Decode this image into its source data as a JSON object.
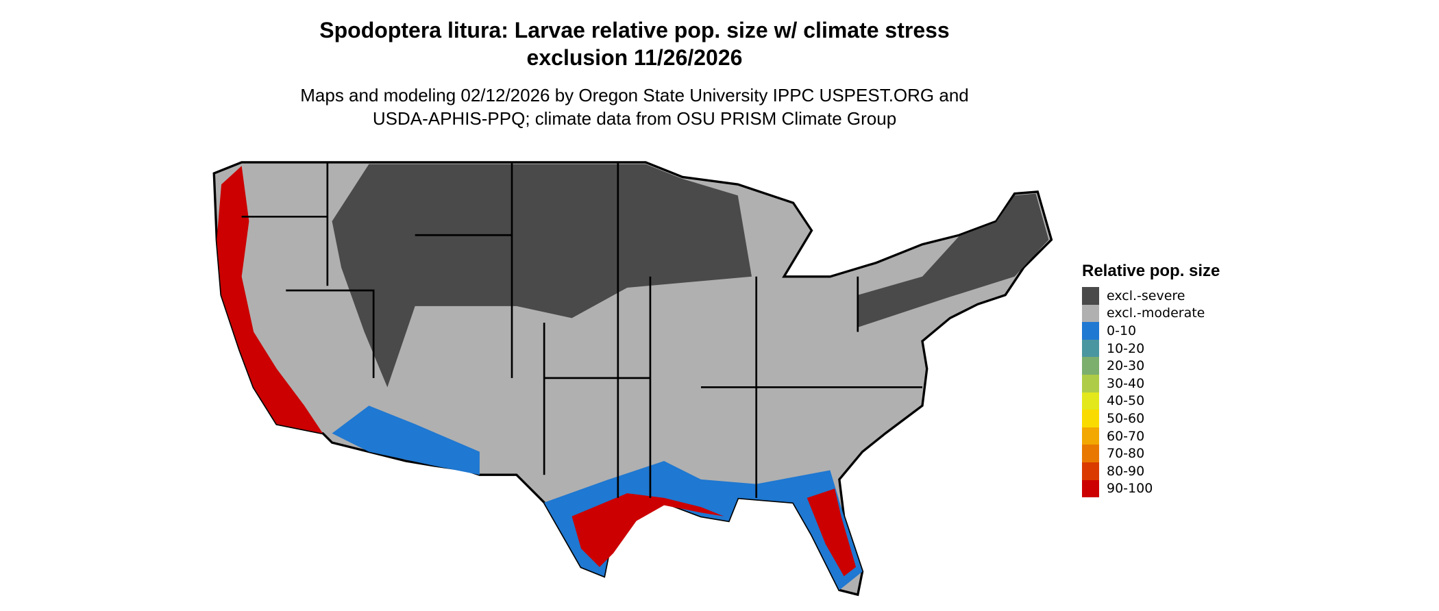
{
  "title": "Spodoptera litura: Larvae relative pop. size w/ climate stress exclusion 11/26/2026",
  "subtitle": "Maps and modeling 02/12/2026 by Oregon State University IPPC USPEST.ORG and USDA-APHIS-PPQ; climate data from OSU PRISM Climate Group",
  "legend": {
    "title": "Relative pop. size",
    "items": [
      {
        "label": "excl.-severe",
        "color": "#4a4a4a"
      },
      {
        "label": "excl.-moderate",
        "color": "#b0b0b0"
      },
      {
        "label": "0-10",
        "color": "#1f78d1"
      },
      {
        "label": "10-20",
        "color": "#4a96a0"
      },
      {
        "label": "20-30",
        "color": "#7cae6e"
      },
      {
        "label": "30-40",
        "color": "#afcc48"
      },
      {
        "label": "40-50",
        "color": "#e2e81c"
      },
      {
        "label": "50-60",
        "color": "#fadb00"
      },
      {
        "label": "60-70",
        "color": "#f2a800"
      },
      {
        "label": "70-80",
        "color": "#e87800"
      },
      {
        "label": "80-90",
        "color": "#da3a00"
      },
      {
        "label": "90-100",
        "color": "#cc0000"
      }
    ]
  }
}
